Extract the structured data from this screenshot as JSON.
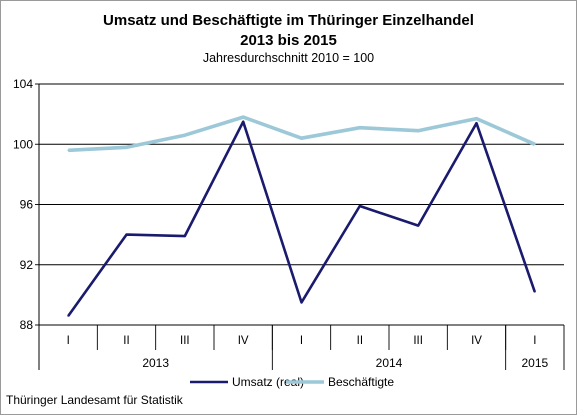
{
  "chart_data": {
    "type": "line",
    "title": "Umsatz und Beschäftigte im Thüringer Einzelhandel",
    "title_line2": "2013 bis 2015",
    "subtitle": "Jahresdurchschnitt 2010 = 100",
    "categories": [
      "I",
      "II",
      "III",
      "IV",
      "I",
      "II",
      "III",
      "IV",
      "I"
    ],
    "year_groups": [
      {
        "label": "2013",
        "span": 4
      },
      {
        "label": "2014",
        "span": 4
      },
      {
        "label": "2015",
        "span": 1
      }
    ],
    "ylim": [
      88,
      104
    ],
    "yticks": [
      88,
      92,
      96,
      100,
      104
    ],
    "grid": true,
    "legend_position": "bottom",
    "series": [
      {
        "name": "Umsatz (real)",
        "color": "#1a1a6e",
        "values": [
          88.6,
          94.0,
          93.9,
          101.5,
          89.5,
          95.9,
          94.6,
          101.4,
          90.2
        ]
      },
      {
        "name": "Beschäftigte",
        "color": "#9cc8d8",
        "values": [
          99.6,
          99.8,
          100.6,
          101.8,
          100.4,
          101.1,
          100.9,
          101.7,
          100.0
        ]
      }
    ]
  },
  "footer": "Thüringer Landesamt für Statistik"
}
